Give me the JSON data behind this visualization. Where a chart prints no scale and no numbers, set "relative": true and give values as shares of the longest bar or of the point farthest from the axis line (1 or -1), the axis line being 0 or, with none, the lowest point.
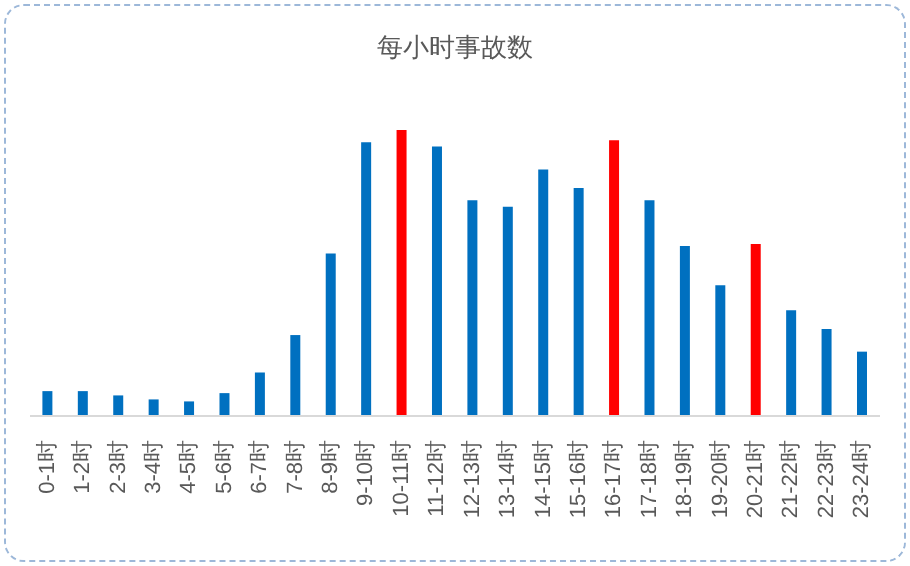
{
  "chart_data": {
    "type": "bar",
    "title": "每小时事故数",
    "relative": true,
    "categories": [
      "0-1时",
      "1-2时",
      "2-3时",
      "3-4时",
      "4-5时",
      "5-6时",
      "6-7时",
      "7-8时",
      "8-9时",
      "9-10时",
      "10-11时",
      "11-12时",
      "12-13时",
      "13-14时",
      "14-15时",
      "15-16时",
      "16-17时",
      "17-18时",
      "18-19时",
      "19-20时",
      "20-21时",
      "21-22时",
      "22-23时",
      "23-24时"
    ],
    "values": [
      0.087,
      0.087,
      0.072,
      0.058,
      0.051,
      0.08,
      0.152,
      0.283,
      0.568,
      0.957,
      1,
      0.942,
      0.754,
      0.732,
      0.862,
      0.797,
      0.964,
      0.754,
      0.594,
      0.457,
      0.601,
      0.37,
      0.304,
      0.225
    ],
    "colors": [
      "#0070c0",
      "#0070c0",
      "#0070c0",
      "#0070c0",
      "#0070c0",
      "#0070c0",
      "#0070c0",
      "#0070c0",
      "#0070c0",
      "#0070c0",
      "#ff0000",
      "#0070c0",
      "#0070c0",
      "#0070c0",
      "#0070c0",
      "#0070c0",
      "#ff0000",
      "#0070c0",
      "#0070c0",
      "#0070c0",
      "#ff0000",
      "#0070c0",
      "#0070c0",
      "#0070c0"
    ],
    "grid": false,
    "legend": false
  }
}
